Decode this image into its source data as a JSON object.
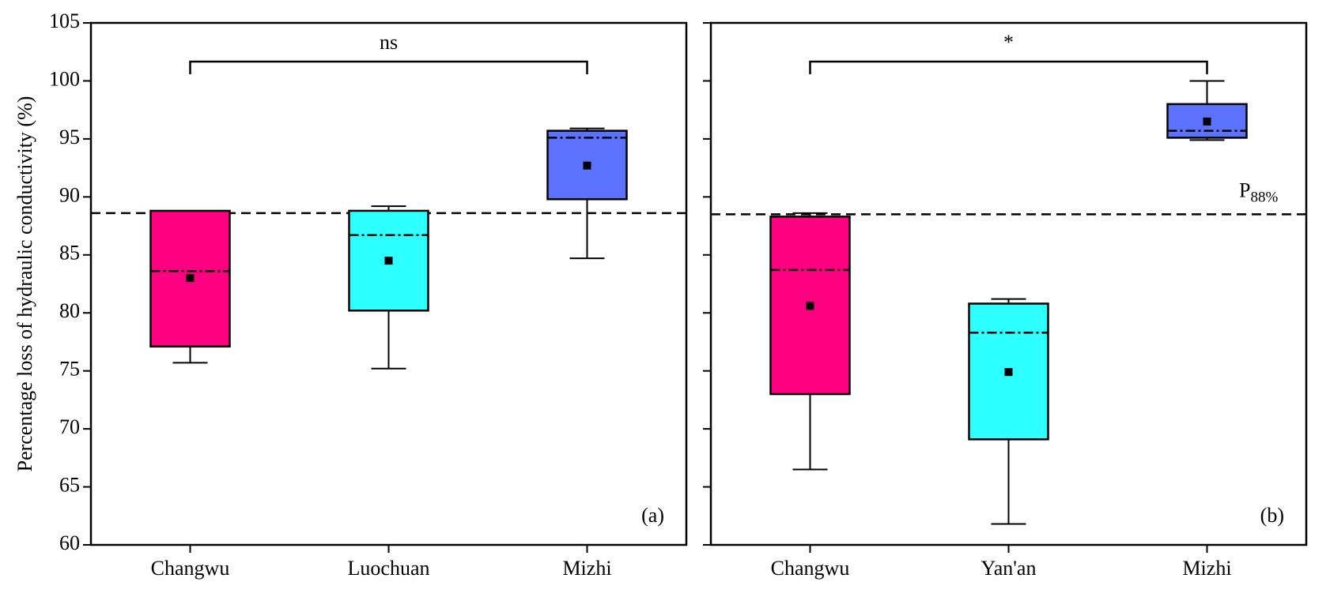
{
  "chart_data": [
    {
      "type": "box",
      "panel_label": "(a)",
      "y_label": "Percentage loss of hydraulic conductivity (%)",
      "significance_label": "ns",
      "categories": [
        "Changwu",
        "Luochuan",
        "Mizhi"
      ],
      "colors": [
        "#ff0080",
        "#2effff",
        "#5b73ff"
      ],
      "boxes": [
        {
          "whisker_low": 75.7,
          "q1": 77.1,
          "median": 83.6,
          "mean": 83.0,
          "q3": 88.8,
          "whisker_high": 88.8
        },
        {
          "whisker_low": 75.2,
          "q1": 80.2,
          "median": 86.7,
          "mean": 84.5,
          "q3": 88.8,
          "whisker_high": 89.2
        },
        {
          "whisker_low": 84.7,
          "q1": 89.8,
          "median": 95.1,
          "mean": 92.7,
          "q3": 95.7,
          "whisker_high": 95.9
        }
      ],
      "reference_line": 88.6,
      "ylim": [
        60,
        105
      ],
      "yticks": [
        60,
        65,
        70,
        75,
        80,
        85,
        90,
        95,
        100,
        105
      ],
      "show_ytick_labels": true
    },
    {
      "type": "box",
      "panel_label": "(b)",
      "significance_label": "*",
      "categories": [
        "Changwu",
        "Yan'an",
        "Mizhi"
      ],
      "colors": [
        "#ff0080",
        "#2effff",
        "#5b73ff"
      ],
      "boxes": [
        {
          "whisker_low": 66.5,
          "q1": 73.0,
          "median": 83.7,
          "mean": 80.6,
          "q3": 88.3,
          "whisker_high": 88.6
        },
        {
          "whisker_low": 61.8,
          "q1": 69.1,
          "median": 78.3,
          "mean": 74.9,
          "q3": 80.8,
          "whisker_high": 81.2
        },
        {
          "whisker_low": 94.9,
          "q1": 95.1,
          "median": 95.7,
          "mean": 96.5,
          "q3": 98.0,
          "whisker_high": 100
        }
      ],
      "reference_line": 88.5,
      "reference_label": "P",
      "reference_label_sub": "88%",
      "ylim": [
        60,
        105
      ],
      "yticks": [
        60,
        65,
        70,
        75,
        80,
        85,
        90,
        95,
        100,
        105
      ],
      "show_ytick_labels": false
    }
  ]
}
